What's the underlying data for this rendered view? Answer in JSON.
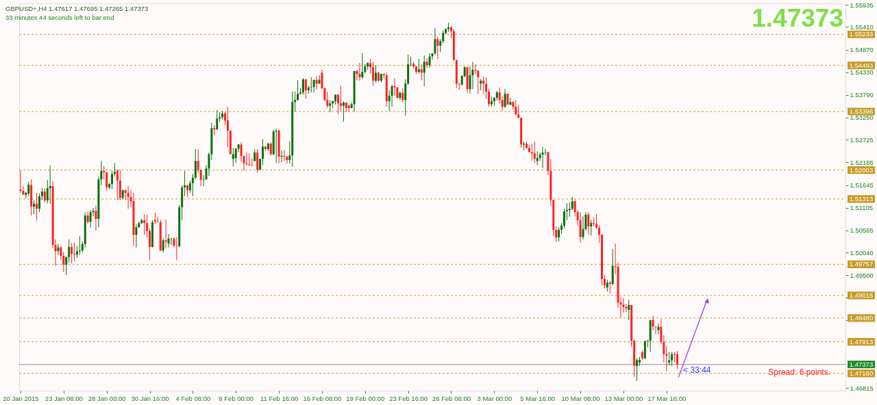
{
  "chart_data": {
    "type": "candlestick",
    "title": "GBPUSD+,H4 1.47617 1.47695 1.47265 1.47373",
    "subtitle": "33 minutes 44 seconds left to bar end",
    "annotations": [
      "1.47373",
      "Spread: 6 points.",
      {
        "text": "< 33:44",
        "y": 1.47373
      }
    ],
    "categories": [
      "20 Jan 2015",
      null,
      null,
      null,
      null,
      null,
      null,
      null,
      null,
      null,
      null,
      null,
      null,
      null,
      null,
      null,
      "23 Jan 08:00",
      null,
      null,
      null,
      null,
      null,
      null,
      null,
      null,
      null,
      null,
      null,
      null,
      null,
      null,
      null,
      "28 Jan 00:00",
      null,
      null,
      null,
      null,
      null,
      null,
      null,
      null,
      null,
      null,
      null,
      null,
      null,
      null,
      null,
      "30 Jan 16:00",
      null,
      null,
      null,
      null,
      null,
      null,
      null,
      null,
      null,
      null,
      null,
      null,
      null,
      null,
      null,
      "4 Feb 08:00",
      null,
      null,
      null,
      null,
      null,
      null,
      null,
      null,
      null,
      null,
      null,
      null,
      null,
      null,
      null,
      "9 Feb 00:00",
      null,
      null,
      null,
      null,
      null,
      null,
      null,
      null,
      null,
      null,
      null,
      null,
      null,
      null,
      null,
      "11 Feb 16:00",
      null,
      null,
      null,
      null,
      null,
      null,
      null,
      null,
      null,
      null,
      null,
      null,
      null,
      null,
      null,
      "16 Feb 08:00",
      null,
      null,
      null,
      null,
      null,
      null,
      null,
      null,
      null,
      null,
      null,
      null,
      null,
      null,
      null,
      "19 Feb 00:00",
      null,
      null,
      null,
      null,
      null,
      null,
      null,
      null,
      null,
      null,
      null,
      null,
      null,
      null,
      null,
      "23 Feb 16:00",
      null,
      null,
      null,
      null,
      null,
      null,
      null,
      null,
      null,
      null,
      null,
      null,
      null,
      null,
      null,
      "26 Feb 08:00",
      null,
      null,
      null,
      null,
      null,
      null,
      null,
      null,
      null,
      null,
      null,
      null,
      null,
      null,
      null,
      "3 Mar 00:00",
      null,
      null,
      null,
      null,
      null,
      null,
      null,
      null,
      null,
      null,
      null,
      null,
      null,
      null,
      null,
      "5 Mar 16:00",
      null,
      null,
      null,
      null,
      null,
      null,
      null,
      null,
      null,
      null,
      null,
      null,
      null,
      null,
      null,
      "10 Mar 08:00",
      null,
      null,
      null,
      null,
      null,
      null,
      null,
      null,
      null,
      null,
      null,
      null,
      null,
      null,
      null,
      "13 Mar 00:00",
      null,
      null,
      null,
      null,
      null,
      null,
      null,
      null,
      null,
      null,
      null,
      null,
      null,
      null,
      null,
      "17 Mar 16:00",
      null,
      null,
      null,
      null,
      null,
      null,
      null,
      null,
      null,
      null,
      null,
      null,
      null,
      null,
      null,
      null,
      null,
      null,
      null,
      null,
      null,
      null,
      null,
      null,
      null,
      null,
      null,
      null,
      null,
      null,
      null,
      null,
      null,
      null,
      null,
      null,
      null,
      null,
      null,
      null,
      null,
      null,
      null,
      null,
      null,
      null,
      null,
      null,
      null,
      null,
      null,
      null,
      null,
      null,
      null,
      null,
      null,
      null,
      null,
      null,
      null,
      null,
      null,
      null,
      null,
      null
    ],
    "ohlc": [
      [
        1.5154,
        1.5199,
        1.5146,
        1.5151
      ],
      [
        1.5151,
        1.5162,
        1.5141,
        1.5142
      ],
      [
        1.5141,
        1.5149,
        1.5133,
        1.5146
      ],
      [
        1.5144,
        1.5173,
        1.5138,
        1.5165
      ],
      [
        1.5165,
        1.5178,
        1.5092,
        1.5113
      ],
      [
        1.5113,
        1.5128,
        1.5095,
        1.512
      ],
      [
        1.512,
        1.5146,
        1.5081,
        1.5108
      ],
      [
        1.5108,
        1.5144,
        1.51,
        1.5138
      ],
      [
        1.5138,
        1.5157,
        1.5129,
        1.5149
      ],
      [
        1.5149,
        1.5157,
        1.5123,
        1.5128
      ],
      [
        1.5128,
        1.5177,
        1.5121,
        1.5157
      ],
      [
        1.5157,
        1.5211,
        1.512,
        1.5162
      ],
      [
        1.5162,
        1.5173,
        1.5014,
        1.5022
      ],
      [
        1.5022,
        1.5035,
        1.4972,
        1.5007
      ],
      [
        1.5007,
        1.5025,
        1.4998,
        1.5016
      ],
      [
        1.5016,
        1.502,
        1.4986,
        1.4996
      ],
      [
        1.4996,
        1.5006,
        1.4957,
        1.4975
      ],
      [
        1.4975,
        1.4994,
        1.495,
        1.4993
      ],
      [
        1.4993,
        1.5035,
        1.498,
        1.5017
      ],
      [
        1.5017,
        1.5027,
        1.4978,
        1.5001
      ],
      [
        1.5001,
        1.5027,
        1.4983,
        1.4999
      ],
      [
        1.4999,
        1.5019,
        1.4991,
        1.5007
      ],
      [
        1.5007,
        1.5043,
        1.4998,
        1.5009
      ],
      [
        1.5009,
        1.503,
        1.5004,
        1.5024
      ],
      [
        1.5024,
        1.5099,
        1.5016,
        1.5092
      ],
      [
        1.5092,
        1.5102,
        1.5072,
        1.5077
      ],
      [
        1.5077,
        1.5105,
        1.5063,
        1.51
      ],
      [
        1.51,
        1.511,
        1.509,
        1.5103
      ],
      [
        1.5103,
        1.5116,
        1.5056,
        1.5084
      ],
      [
        1.5084,
        1.5185,
        1.5064,
        1.5178
      ],
      [
        1.5178,
        1.5222,
        1.5164,
        1.5198
      ],
      [
        1.5198,
        1.5209,
        1.5178,
        1.5195
      ],
      [
        1.5195,
        1.5196,
        1.5151,
        1.5159
      ],
      [
        1.5159,
        1.517,
        1.5154,
        1.5167
      ],
      [
        1.5167,
        1.5198,
        1.5155,
        1.5191
      ],
      [
        1.5191,
        1.5217,
        1.5185,
        1.5196
      ],
      [
        1.5199,
        1.5201,
        1.5129,
        1.5175
      ],
      [
        1.5175,
        1.5201,
        1.5128,
        1.5134
      ],
      [
        1.5134,
        1.5154,
        1.5131,
        1.5152
      ],
      [
        1.5152,
        1.5154,
        1.5129,
        1.5146
      ],
      [
        1.5146,
        1.5162,
        1.5108,
        1.5136
      ],
      [
        1.5136,
        1.5152,
        1.5113,
        1.5126
      ],
      [
        1.5126,
        1.5146,
        1.502,
        1.5046
      ],
      [
        1.5046,
        1.5071,
        1.5016,
        1.5064
      ],
      [
        1.5064,
        1.5077,
        1.5063,
        1.5074
      ],
      [
        1.5074,
        1.5084,
        1.5072,
        1.5081
      ],
      [
        1.5081,
        1.5095,
        1.5046,
        1.5074
      ],
      [
        1.5074,
        1.5094,
        1.504,
        1.5055
      ],
      [
        1.5055,
        1.5061,
        1.4986,
        1.5017
      ],
      [
        1.5017,
        1.5081,
        1.5016,
        1.5076
      ],
      [
        1.5081,
        1.5099,
        1.5071,
        1.5077
      ],
      [
        1.5077,
        1.5089,
        1.5076,
        1.5076
      ],
      [
        1.5076,
        1.5082,
        1.5007,
        1.5009
      ],
      [
        1.5009,
        1.5038,
        1.5004,
        1.5033
      ],
      [
        1.5033,
        1.5082,
        1.5014,
        1.503
      ],
      [
        1.5025,
        1.5048,
        1.5016,
        1.5037
      ],
      [
        1.5037,
        1.5038,
        1.5022,
        1.5038
      ],
      [
        1.5037,
        1.504,
        1.5016,
        1.502
      ],
      [
        1.502,
        1.504,
        1.4986,
        1.5019
      ],
      [
        1.5019,
        1.5118,
        1.5016,
        1.5112
      ],
      [
        1.5112,
        1.5164,
        1.5081,
        1.5159
      ],
      [
        1.5159,
        1.5198,
        1.5138,
        1.5164
      ],
      [
        1.5164,
        1.5165,
        1.5136,
        1.5152
      ],
      [
        1.5152,
        1.5175,
        1.5146,
        1.5169
      ],
      [
        1.5169,
        1.5191,
        1.5138,
        1.5182
      ],
      [
        1.5182,
        1.525,
        1.5178,
        1.5222
      ],
      [
        1.5222,
        1.525,
        1.5193,
        1.5201
      ],
      [
        1.5201,
        1.5201,
        1.5162,
        1.5177
      ],
      [
        1.5177,
        1.5188,
        1.5162,
        1.5178
      ],
      [
        1.5178,
        1.5212,
        1.5178,
        1.5204
      ],
      [
        1.5204,
        1.5242,
        1.5186,
        1.5238
      ],
      [
        1.5238,
        1.5313,
        1.5224,
        1.53
      ],
      [
        1.53,
        1.5307,
        1.5283,
        1.5297
      ],
      [
        1.5297,
        1.5343,
        1.5296,
        1.5323
      ],
      [
        1.5323,
        1.5338,
        1.5315,
        1.5326
      ],
      [
        1.5326,
        1.5341,
        1.532,
        1.5335
      ],
      [
        1.5335,
        1.5339,
        1.5307,
        1.5318
      ],
      [
        1.5318,
        1.5351,
        1.5255,
        1.5294
      ],
      [
        1.5294,
        1.5294,
        1.5238,
        1.5238
      ],
      [
        1.5227,
        1.5253,
        1.5209,
        1.5238
      ],
      [
        1.5229,
        1.5253,
        1.5217,
        1.5251
      ],
      [
        1.5251,
        1.5263,
        1.5243,
        1.5261
      ],
      [
        1.5261,
        1.5266,
        1.5219,
        1.5234
      ],
      [
        1.5234,
        1.5234,
        1.5199,
        1.5216
      ],
      [
        1.5216,
        1.5243,
        1.5211,
        1.5214
      ],
      [
        1.5214,
        1.524,
        1.5211,
        1.5212
      ],
      [
        1.5212,
        1.5229,
        1.521,
        1.5211
      ],
      [
        1.5222,
        1.525,
        1.522,
        1.5242
      ],
      [
        1.5242,
        1.525,
        1.5195,
        1.5201
      ],
      [
        1.5201,
        1.5227,
        1.5201,
        1.5227
      ],
      [
        1.5227,
        1.5274,
        1.5212,
        1.5256
      ],
      [
        1.5256,
        1.5258,
        1.5245,
        1.525
      ],
      [
        1.525,
        1.5265,
        1.5245,
        1.5263
      ],
      [
        1.5263,
        1.5266,
        1.5235,
        1.5238
      ],
      [
        1.5238,
        1.5297,
        1.5235,
        1.5292
      ],
      [
        1.5292,
        1.5299,
        1.5217,
        1.5294
      ],
      [
        1.5294,
        1.5297,
        1.5216,
        1.5232
      ],
      [
        1.5232,
        1.5247,
        1.5219,
        1.5234
      ],
      [
        1.5234,
        1.5248,
        1.5222,
        1.5232
      ],
      [
        1.5232,
        1.5234,
        1.5216,
        1.5224
      ],
      [
        1.5224,
        1.5269,
        1.5216,
        1.5235
      ],
      [
        1.5235,
        1.5387,
        1.5208,
        1.5362
      ],
      [
        1.5362,
        1.5387,
        1.5339,
        1.5367
      ],
      [
        1.5367,
        1.5414,
        1.5366,
        1.5382
      ],
      [
        1.5382,
        1.5395,
        1.538,
        1.5385
      ],
      [
        1.5385,
        1.5419,
        1.538,
        1.5416
      ],
      [
        1.5416,
        1.5417,
        1.537,
        1.539
      ],
      [
        1.539,
        1.5401,
        1.5382,
        1.5397
      ],
      [
        1.5397,
        1.5421,
        1.5385,
        1.5398
      ],
      [
        1.5398,
        1.5415,
        1.5385,
        1.5415
      ],
      [
        1.5415,
        1.5424,
        1.5392,
        1.5406
      ],
      [
        1.5406,
        1.5426,
        1.5406,
        1.5415
      ],
      [
        1.5432,
        1.5439,
        1.5393,
        1.5395
      ],
      [
        1.5395,
        1.5397,
        1.5364,
        1.5367
      ],
      [
        1.5367,
        1.5387,
        1.5348,
        1.5353
      ],
      [
        1.5353,
        1.5366,
        1.5338,
        1.5359
      ],
      [
        1.5359,
        1.5366,
        1.5348,
        1.5364
      ],
      [
        1.5364,
        1.538,
        1.5356,
        1.538
      ],
      [
        1.538,
        1.538,
        1.5333,
        1.5359
      ],
      [
        1.5359,
        1.5401,
        1.5341,
        1.5353
      ],
      [
        1.5353,
        1.5364,
        1.5315,
        1.5361
      ],
      [
        1.5361,
        1.5361,
        1.5339,
        1.5348
      ],
      [
        1.5354,
        1.5356,
        1.5339,
        1.5348
      ],
      [
        1.5348,
        1.5361,
        1.5348,
        1.5357
      ],
      [
        1.5357,
        1.5436,
        1.5339,
        1.5436
      ],
      [
        1.5436,
        1.5439,
        1.5414,
        1.5429
      ],
      [
        1.5429,
        1.5455,
        1.5413,
        1.5421
      ],
      [
        1.5421,
        1.5479,
        1.5417,
        1.5434
      ],
      [
        1.5434,
        1.5453,
        1.543,
        1.5447
      ],
      [
        1.5447,
        1.5457,
        1.5439,
        1.5455
      ],
      [
        1.5455,
        1.5465,
        1.543,
        1.5445
      ],
      [
        1.5445,
        1.5458,
        1.5401,
        1.5413
      ],
      [
        1.5413,
        1.545,
        1.5409,
        1.5432
      ],
      [
        1.5432,
        1.5434,
        1.5411,
        1.5413
      ],
      [
        1.5413,
        1.543,
        1.5409,
        1.5429
      ],
      [
        1.5429,
        1.543,
        1.5419,
        1.5426
      ],
      [
        1.5426,
        1.5432,
        1.5351,
        1.5364
      ],
      [
        1.5364,
        1.539,
        1.5341,
        1.5377
      ],
      [
        1.5377,
        1.5403,
        1.5351,
        1.54
      ],
      [
        1.54,
        1.5419,
        1.5377,
        1.5397
      ],
      [
        1.5397,
        1.5398,
        1.537,
        1.5372
      ],
      [
        1.5372,
        1.5387,
        1.5366,
        1.5384
      ],
      [
        1.5384,
        1.5395,
        1.5362,
        1.5367
      ],
      [
        1.5367,
        1.5416,
        1.533,
        1.5406
      ],
      [
        1.5406,
        1.5475,
        1.5403,
        1.5452
      ],
      [
        1.5452,
        1.547,
        1.5447,
        1.5453
      ],
      [
        1.5453,
        1.5458,
        1.5442,
        1.5447
      ],
      [
        1.5447,
        1.5448,
        1.5429,
        1.5434
      ],
      [
        1.5434,
        1.5465,
        1.543,
        1.544
      ],
      [
        1.544,
        1.5452,
        1.5414,
        1.5432
      ],
      [
        1.5432,
        1.5473,
        1.54,
        1.5458
      ],
      [
        1.5458,
        1.5466,
        1.5444,
        1.545
      ],
      [
        1.545,
        1.5478,
        1.5444,
        1.5471
      ],
      [
        1.5471,
        1.5478,
        1.5463,
        1.5478
      ],
      [
        1.5478,
        1.5538,
        1.5475,
        1.5512
      ],
      [
        1.5512,
        1.5518,
        1.5465,
        1.5496
      ],
      [
        1.5496,
        1.5512,
        1.5481,
        1.5507
      ],
      [
        1.5507,
        1.5533,
        1.5502,
        1.5527
      ],
      [
        1.5527,
        1.5538,
        1.5523,
        1.5536
      ],
      [
        1.5536,
        1.5551,
        1.553,
        1.554
      ],
      [
        1.554,
        1.5543,
        1.5514,
        1.5531
      ],
      [
        1.5531,
        1.5536,
        1.5461,
        1.5462
      ],
      [
        1.5462,
        1.5463,
        1.5396,
        1.5406
      ],
      [
        1.5406,
        1.5406,
        1.5392,
        1.5404
      ],
      [
        1.5404,
        1.5427,
        1.5401,
        1.5424
      ],
      [
        1.5424,
        1.5447,
        1.5421,
        1.5445
      ],
      [
        1.5445,
        1.5447,
        1.5383,
        1.5393
      ],
      [
        1.5393,
        1.5447,
        1.5382,
        1.5426
      ],
      [
        1.5426,
        1.5458,
        1.5393,
        1.5439
      ],
      [
        1.5439,
        1.5452,
        1.5429,
        1.5437
      ],
      [
        1.5437,
        1.5437,
        1.5382,
        1.5421
      ],
      [
        1.5406,
        1.5417,
        1.539,
        1.5413
      ],
      [
        1.5413,
        1.5423,
        1.5382,
        1.5406
      ],
      [
        1.5406,
        1.5421,
        1.537,
        1.5387
      ],
      [
        1.5387,
        1.5393,
        1.5351,
        1.5357
      ],
      [
        1.5357,
        1.5375,
        1.5351,
        1.5364
      ],
      [
        1.5364,
        1.5374,
        1.5353,
        1.5372
      ],
      [
        1.5372,
        1.5389,
        1.5366,
        1.5385
      ],
      [
        1.5385,
        1.5397,
        1.5359,
        1.5367
      ],
      [
        1.5367,
        1.5377,
        1.5341,
        1.5351
      ],
      [
        1.5351,
        1.5393,
        1.5348,
        1.5382
      ],
      [
        1.5382,
        1.5382,
        1.5356,
        1.5356
      ],
      [
        1.5356,
        1.5372,
        1.5354,
        1.5362
      ],
      [
        1.5362,
        1.5364,
        1.5344,
        1.5351
      ],
      [
        1.5351,
        1.5367,
        1.5331,
        1.5333
      ],
      [
        1.5333,
        1.5356,
        1.5323,
        1.5325
      ],
      [
        1.5325,
        1.5325,
        1.5253,
        1.5261
      ],
      [
        1.5261,
        1.5268,
        1.5248,
        1.5263
      ],
      [
        1.5263,
        1.5268,
        1.5251,
        1.5253
      ],
      [
        1.5253,
        1.526,
        1.5242,
        1.5243
      ],
      [
        1.5243,
        1.5263,
        1.5222,
        1.524
      ],
      [
        1.524,
        1.5268,
        1.5217,
        1.5227
      ],
      [
        1.5222,
        1.5245,
        1.5212,
        1.5229
      ],
      [
        1.5229,
        1.5242,
        1.5222,
        1.5237
      ],
      [
        1.5237,
        1.5255,
        1.5204,
        1.5242
      ],
      [
        1.5242,
        1.5251,
        1.5235,
        1.5243
      ],
      [
        1.5243,
        1.5243,
        1.5188,
        1.5198
      ],
      [
        1.5198,
        1.5226,
        1.5115,
        1.5129
      ],
      [
        1.5129,
        1.5129,
        1.5043,
        1.5058
      ],
      [
        1.5058,
        1.5066,
        1.5029,
        1.504
      ],
      [
        1.504,
        1.5064,
        1.503,
        1.5058
      ],
      [
        1.5058,
        1.5074,
        1.5048,
        1.5068
      ],
      [
        1.5068,
        1.5108,
        1.5061,
        1.5102
      ],
      [
        1.5102,
        1.5121,
        1.5081,
        1.5105
      ],
      [
        1.5105,
        1.5123,
        1.5089,
        1.5108
      ],
      [
        1.5108,
        1.5136,
        1.5105,
        1.5126
      ],
      [
        1.5126,
        1.5129,
        1.509,
        1.51
      ],
      [
        1.51,
        1.5105,
        1.5068,
        1.5081
      ],
      [
        1.5081,
        1.51,
        1.5027,
        1.5041
      ],
      [
        1.5041,
        1.509,
        1.5035,
        1.506
      ],
      [
        1.506,
        1.51,
        1.5056,
        1.5094
      ],
      [
        1.5094,
        1.51,
        1.5046,
        1.5066
      ],
      [
        1.5066,
        1.5082,
        1.5044,
        1.5074
      ],
      [
        1.5074,
        1.5087,
        1.5066,
        1.5072
      ],
      [
        1.5072,
        1.5095,
        1.506,
        1.5063
      ],
      [
        1.5063,
        1.5069,
        1.5027,
        1.5046
      ],
      [
        1.5046,
        1.5048,
        1.4926,
        1.4941
      ],
      [
        1.4941,
        1.495,
        1.4918,
        1.4926
      ],
      [
        1.4921,
        1.4939,
        1.4911,
        1.4932
      ],
      [
        1.4932,
        1.4936,
        1.4906,
        1.4929
      ],
      [
        1.4929,
        1.5012,
        1.4926,
        1.4972
      ],
      [
        1.4972,
        1.5025,
        1.4952,
        1.497
      ],
      [
        1.497,
        1.498,
        1.4872,
        1.4885
      ],
      [
        1.4885,
        1.4898,
        1.4849,
        1.488
      ],
      [
        1.488,
        1.4896,
        1.4861,
        1.4874
      ],
      [
        1.4874,
        1.4882,
        1.4862,
        1.4871
      ],
      [
        1.4867,
        1.4891,
        1.4843,
        1.4879
      ],
      [
        1.4879,
        1.4879,
        1.4779,
        1.4794
      ],
      [
        1.4794,
        1.4797,
        1.4708,
        1.4734
      ],
      [
        1.4734,
        1.4753,
        1.4698,
        1.4748
      ],
      [
        1.4742,
        1.4755,
        1.4734,
        1.4748
      ],
      [
        1.4766,
        1.4771,
        1.4748,
        1.4752
      ],
      [
        1.4752,
        1.4794,
        1.475,
        1.4793
      ],
      [
        1.4793,
        1.4796,
        1.4778,
        1.4794
      ],
      [
        1.4794,
        1.4843,
        1.4767,
        1.4843
      ],
      [
        1.4843,
        1.4853,
        1.4819,
        1.4828
      ],
      [
        1.4828,
        1.4828,
        1.481,
        1.4827
      ],
      [
        1.4819,
        1.4835,
        1.481,
        1.4827
      ],
      [
        1.4827,
        1.4845,
        1.4786,
        1.4791
      ],
      [
        1.4791,
        1.4807,
        1.4742,
        1.4762
      ],
      [
        1.4762,
        1.4781,
        1.4721,
        1.4758
      ],
      [
        1.4742,
        1.4767,
        1.4735,
        1.4747
      ],
      [
        1.4747,
        1.4767,
        1.4734,
        1.4762
      ],
      [
        1.4762,
        1.4767,
        1.4742,
        1.476
      ],
      [
        1.47617,
        1.47695,
        1.47265,
        1.47373
      ],
      null,
      null,
      null,
      null,
      null,
      null,
      null,
      null,
      null,
      null,
      null,
      null,
      null,
      null,
      null,
      null,
      null,
      null,
      null,
      null,
      null,
      null,
      null,
      null,
      null,
      null,
      null,
      null,
      null,
      null,
      null,
      null,
      null,
      null,
      null,
      null,
      null,
      null,
      null,
      null,
      null,
      null,
      null,
      null,
      null,
      null,
      null,
      null,
      null,
      null,
      null,
      null,
      null,
      null,
      null,
      null,
      null,
      null,
      null,
      null,
      null,
      null
    ],
    "colors": [
      "#ff2020",
      "#ff2020",
      "#0a6e0a",
      "#0a6e0a",
      "#ff2020",
      "#0a6e0a",
      "#ff2020",
      "#0a6e0a",
      "#0a6e0a",
      "#ff2020",
      "#0a6e0a",
      "#0a6e0a",
      "#ff2020",
      "#ff2020",
      "#0a6e0a",
      "#ff2020",
      "#ff2020",
      "#0a6e0a",
      "#0a6e0a",
      "#ff2020",
      "#ff2020",
      "#0a6e0a",
      "#0a6e0a",
      "#0a6e0a",
      "#0a6e0a",
      "#ff2020",
      "#0a6e0a",
      "#0a6e0a",
      "#ff2020",
      "#0a6e0a",
      "#0a6e0a",
      "#ff2020",
      "#ff2020",
      "#0a6e0a",
      "#0a6e0a",
      "#0a6e0a",
      "#ff2020",
      "#ff2020",
      "#0a6e0a",
      "#ff2020",
      "#ff2020",
      "#ff2020",
      "#ff2020",
      "#0a6e0a",
      "#0a6e0a",
      "#0a6e0a",
      "#ff2020",
      "#ff2020",
      "#ff2020",
      "#0a6e0a",
      "#ff2020",
      "#ff2020",
      "#ff2020",
      "#0a6e0a",
      "#ff2020",
      "#0a6e0a",
      "#0a6e0a",
      "#ff2020",
      "#ff2020",
      "#0a6e0a",
      "#0a6e0a",
      "#0a6e0a",
      "#ff2020",
      "#0a6e0a",
      "#0a6e0a",
      "#0a6e0a",
      "#ff2020",
      "#ff2020",
      "#0a6e0a",
      "#0a6e0a",
      "#0a6e0a",
      "#0a6e0a",
      "#ff2020",
      "#0a6e0a",
      "#0a6e0a",
      "#0a6e0a",
      "#ff2020",
      "#ff2020",
      "#ff2020",
      "#0a6e0a",
      "#0a6e0a",
      "#0a6e0a",
      "#ff2020",
      "#ff2020",
      "#ff2020",
      "#ff2020",
      "#ff2020",
      "#0a6e0a",
      "#ff2020",
      "#0a6e0a",
      "#0a6e0a",
      "#ff2020",
      "#0a6e0a",
      "#ff2020",
      "#0a6e0a",
      "#0a6e0a",
      "#ff2020",
      "#0a6e0a",
      "#ff2020",
      "#ff2020",
      "#0a6e0a",
      "#0a6e0a",
      "#0a6e0a",
      "#0a6e0a",
      "#0a6e0a",
      "#0a6e0a",
      "#ff2020",
      "#0a6e0a",
      "#0a6e0a",
      "#0a6e0a",
      "#ff2020",
      "#0a6e0a",
      "#ff2020",
      "#ff2020",
      "#ff2020",
      "#0a6e0a",
      "#0a6e0a",
      "#0a6e0a",
      "#ff2020",
      "#ff2020",
      "#0a6e0a",
      "#ff2020",
      "#ff2020",
      "#0a6e0a",
      "#0a6e0a",
      "#ff2020",
      "#ff2020",
      "#0a6e0a",
      "#0a6e0a",
      "#0a6e0a",
      "#ff2020",
      "#ff2020",
      "#0a6e0a",
      "#ff2020",
      "#0a6e0a",
      "#ff2020",
      "#ff2020",
      "#0a6e0a",
      "#0a6e0a",
      "#ff2020",
      "#ff2020",
      "#0a6e0a",
      "#ff2020",
      "#0a6e0a",
      "#0a6e0a",
      "#0a6e0a",
      "#ff2020",
      "#ff2020",
      "#0a6e0a",
      "#ff2020",
      "#0a6e0a",
      "#ff2020",
      "#0a6e0a",
      "#0a6e0a",
      "#0a6e0a",
      "#ff2020",
      "#0a6e0a",
      "#0a6e0a",
      "#0a6e0a",
      "#0a6e0a",
      "#ff2020",
      "#ff2020",
      "#ff2020",
      "#ff2020",
      "#0a6e0a",
      "#0a6e0a",
      "#ff2020",
      "#0a6e0a",
      "#0a6e0a",
      "#ff2020",
      "#ff2020",
      "#0a6e0a",
      "#ff2020",
      "#ff2020",
      "#ff2020",
      "#0a6e0a",
      "#0a6e0a",
      "#0a6e0a",
      "#ff2020",
      "#ff2020",
      "#0a6e0a",
      "#ff2020",
      "#0a6e0a",
      "#ff2020",
      "#ff2020",
      "#ff2020",
      "#ff2020",
      "#0a6e0a",
      "#ff2020",
      "#ff2020",
      "#ff2020",
      "#ff2020",
      "#0a6e0a",
      "#0a6e0a",
      "#0a6e0a",
      "#0a6e0a",
      "#ff2020",
      "#ff2020",
      "#ff2020",
      "#ff2020",
      "#0a6e0a",
      "#0a6e0a",
      "#0a6e0a",
      "#0a6e0a",
      "#0a6e0a",
      "#0a6e0a",
      "#ff2020",
      "#ff2020",
      "#ff2020",
      "#0a6e0a",
      "#0a6e0a",
      "#ff2020",
      "#0a6e0a",
      "#ff2020",
      "#ff2020",
      "#ff2020",
      "#ff2020",
      "#ff2020",
      "#0a6e0a",
      "#ff2020",
      "#0a6e0a",
      "#ff2020",
      "#ff2020",
      "#ff2020",
      "#ff2020",
      "#ff2020",
      "#0a6e0a",
      "#ff2020",
      "#ff2020",
      "#0a6e0a",
      "#0a6e0a",
      "#ff2020",
      "#0a6e0a",
      "#0a6e0a",
      "#0a6e0a",
      "#ff2020",
      "#ff2020",
      "#0a6e0a",
      "#ff2020",
      "#ff2020",
      "#ff2020",
      "#0a6e0a",
      "#0a6e0a",
      "#ff2020",
      "#ff2020",
      null,
      null,
      null,
      null,
      null,
      null,
      null,
      null,
      null,
      null,
      null,
      null,
      null,
      null,
      null,
      null,
      null,
      null,
      null,
      null,
      null,
      null,
      null,
      null,
      null,
      null,
      null,
      null,
      null,
      null,
      null,
      null,
      null,
      null,
      null,
      null,
      null,
      null,
      null,
      null,
      null,
      null,
      null,
      null,
      null,
      null,
      null,
      null,
      null,
      null,
      null,
      null,
      null,
      null,
      null,
      null,
      null,
      null,
      null,
      null,
      null,
      null
    ],
    "ylim": [
      1.4675,
      1.5597
    ],
    "yticks": [
      1.55935,
      {
        "value": 1.5541,
        "label": "1.55410"
      },
      {
        "value": 1.5487,
        "label": "1.54870"
      },
      {
        "value": 1.5433,
        "label": "1.54330"
      },
      {
        "value": 1.5379,
        "label": "1.53790"
      },
      {
        "value": 1.5325,
        "label": "1.53250"
      },
      1.52725,
      1.52185,
      1.51645,
      1.51105,
      1.50565,
      {
        "value": 1.5004,
        "label": "1.50040"
      },
      {
        "value": 1.495,
        "label": "1.49500"
      },
      {
        "value": 1.4896,
        "label": null
      },
      {
        "value": 1.4842,
        "label": null
      },
      1.46815
    ],
    "ref_lines": [
      {
        "axis": "y",
        "value": 1.55233,
        "label": "1.55233",
        "color": "#c89b28",
        "line_style": "dashed"
      },
      {
        "axis": "y",
        "value": 1.54493,
        "label": "1.54493",
        "color": "#c89b28",
        "line_style": "dashed"
      },
      {
        "axis": "y",
        "value": 1.53396,
        "label": "1.53396",
        "color": "#c89b28",
        "line_style": "dashed"
      },
      {
        "axis": "y",
        "value": 1.52003,
        "label": "1.52003",
        "color": "#c89b28",
        "line_style": "dashed"
      },
      {
        "axis": "y",
        "value": 1.51313,
        "label": "1.51313",
        "color": "#c89b28",
        "line_style": "dashed"
      },
      {
        "axis": "y",
        "value": 1.49757,
        "label": "1.49757",
        "color": "#c89b28",
        "line_style": "dashed"
      },
      {
        "axis": "y",
        "value": 1.49016,
        "label": "1.49016",
        "color": "#c89b28",
        "line_style": "dashed"
      },
      {
        "axis": "y",
        "value": 1.4848,
        "label": "1.48480",
        "color": "#c89b28",
        "line_style": "dashed"
      },
      {
        "axis": "y",
        "value": 1.47913,
        "label": "1.47913",
        "color": "#c89b28",
        "line_style": "dashed"
      },
      {
        "axis": "y",
        "value": 1.47373,
        "label": "1.47373",
        "color": "#8c8c8c",
        "line_style": "solid"
      },
      {
        "axis": "y",
        "value": 1.4716,
        "label": "1.47160",
        "color": "#c89b28",
        "line_style": "dashed"
      }
    ]
  }
}
